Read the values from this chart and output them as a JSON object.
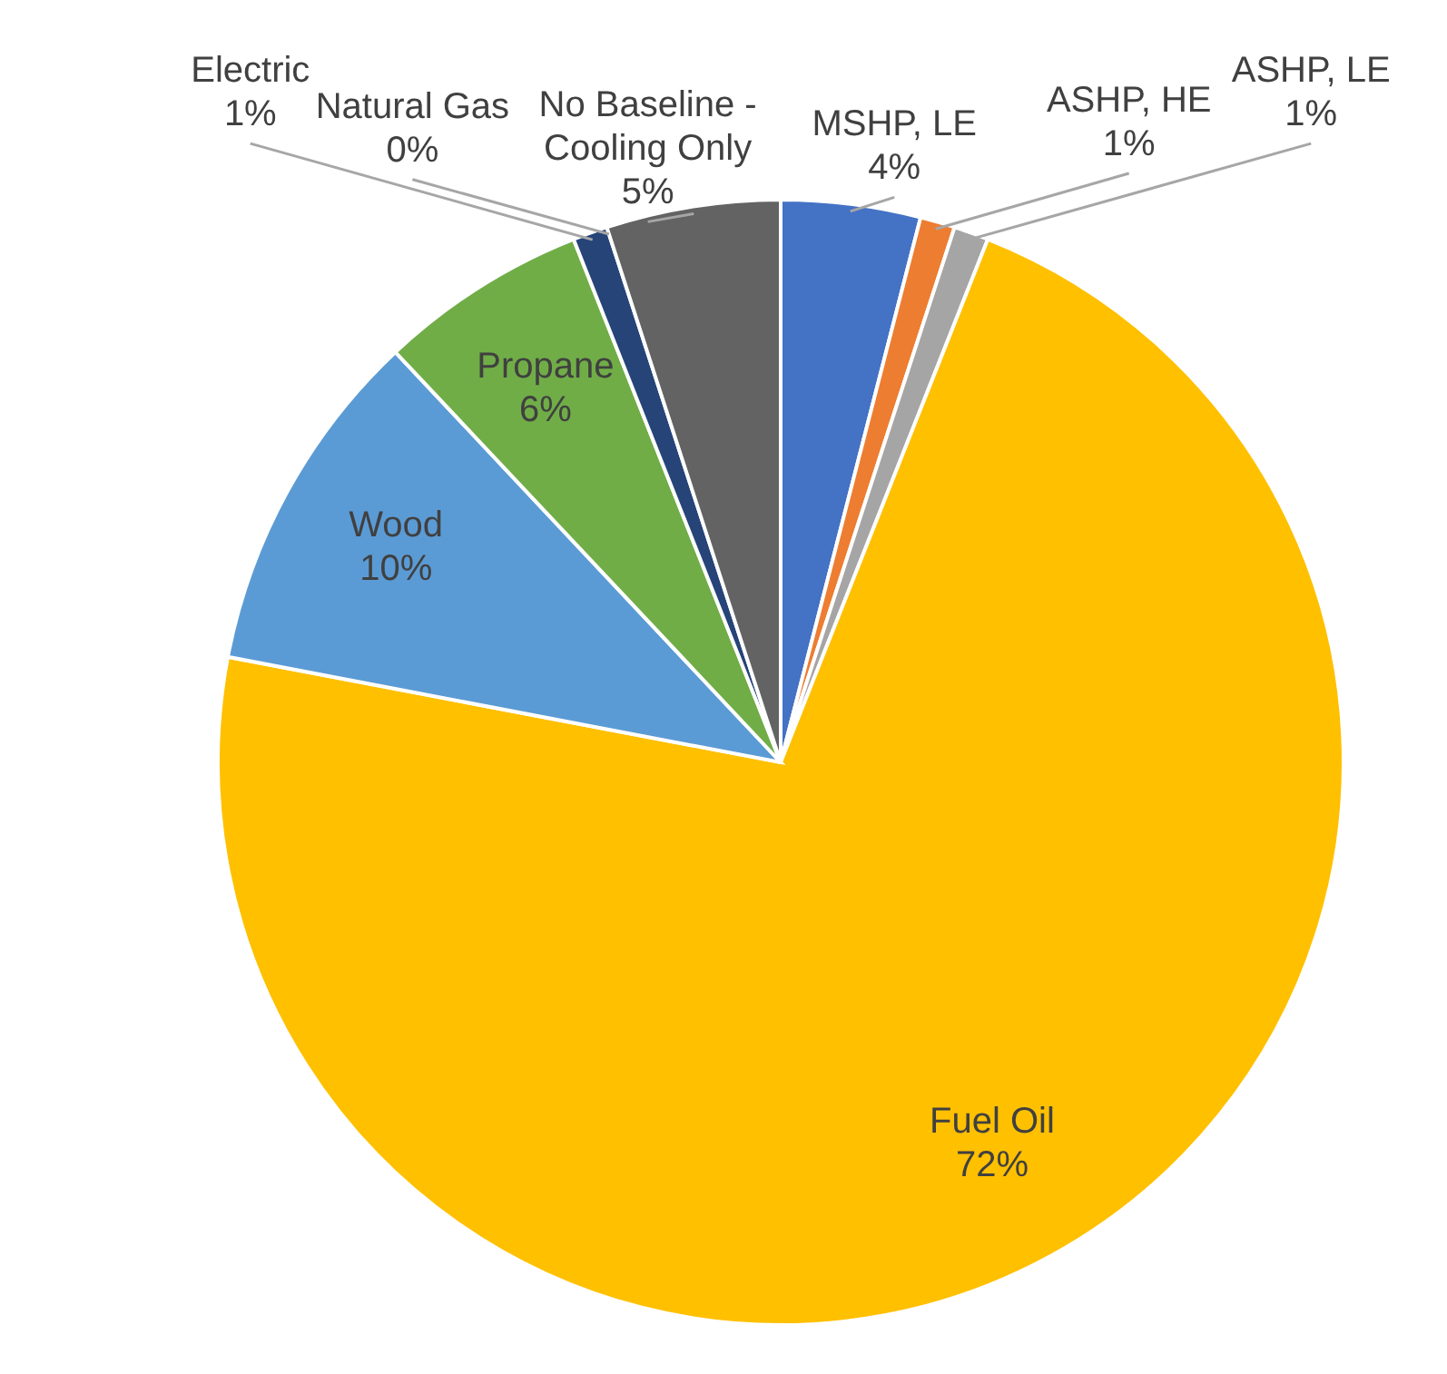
{
  "chart_data": {
    "type": "pie",
    "categories": [
      "MSHP, LE",
      "ASHP, HE",
      "ASHP, LE",
      "Fuel Oil",
      "Wood",
      "Propane",
      "Electric",
      "Natural Gas",
      "No Baseline - Cooling Only"
    ],
    "values": [
      4,
      1,
      1,
      72,
      10,
      6,
      1,
      0,
      5
    ],
    "value_labels": [
      "4%",
      "1%",
      "1%",
      "72%",
      "10%",
      "6%",
      "1%",
      "0%",
      "5%"
    ],
    "colors": [
      "#4472c4",
      "#ed7d31",
      "#a5a5a5",
      "#ffc000",
      "#5b9bd5",
      "#70ad47",
      "#264478",
      "#9e480e",
      "#636363"
    ]
  }
}
